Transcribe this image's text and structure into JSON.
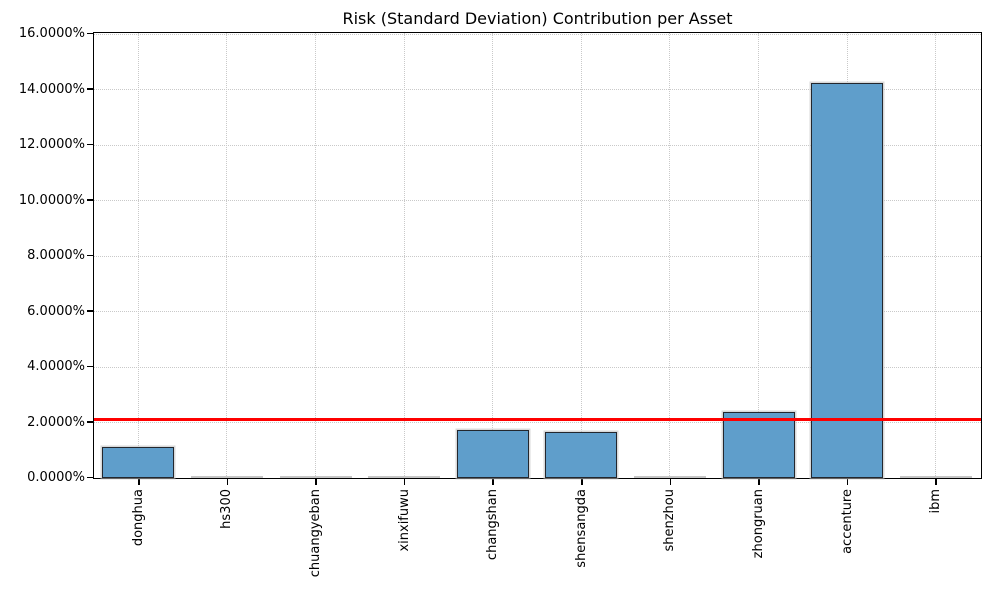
{
  "chart_data": {
    "type": "bar",
    "title": "Risk (Standard Deviation) Contribution per Asset",
    "categories": [
      "donghua",
      "hs300",
      "chuangyeban",
      "xinxifuwu",
      "changshan",
      "shensangda",
      "shenzhou",
      "zhongruan",
      "accenture",
      "ibm"
    ],
    "values": [
      1.11,
      0.01,
      0.01,
      0.01,
      1.74,
      1.66,
      0.01,
      2.37,
      14.22,
      0.01
    ],
    "unit": "percent",
    "xlabel": "",
    "ylabel": "",
    "ylim": [
      0,
      16
    ],
    "ytick_labels": [
      "0.0000%",
      "2.0000%",
      "4.0000%",
      "6.0000%",
      "8.0000%",
      "10.0000%",
      "12.0000%",
      "14.0000%",
      "16.0000%"
    ],
    "reference_line": {
      "value": 2.11,
      "color": "#ff0000",
      "name": "average-risk-contribution-line"
    },
    "grid": "dotted",
    "legend": "none",
    "colors": {
      "bar_fill": "#5f9ecb",
      "bar_edge": "#23272e",
      "near_zero_bar": "#c6c6c6",
      "grid": "#c9c9c9",
      "axis": "#000000",
      "background": "#ffffff"
    }
  }
}
